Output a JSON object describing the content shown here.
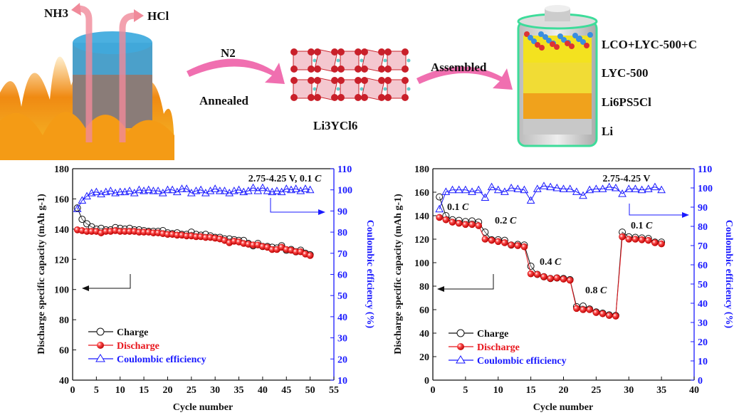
{
  "schematic": {
    "gas_1": "NH3",
    "gas_2": "HCl",
    "step_1_top": "N2",
    "step_1_bottom": "Annealed",
    "product": "Li3YCl6",
    "step_2": "Assembled",
    "layers": [
      "LCO+LYC-500+C",
      "LYC-500",
      "Li6PS5Cl",
      "Li"
    ],
    "colors": {
      "arrow": "#f06fb0",
      "flame": "#f7a21b",
      "crystal": "#c9202a",
      "layer_yellow": "#f3e21f",
      "layer_orange": "#f0a21c",
      "can_rim": "#3ddc9a"
    }
  },
  "chart_data": [
    {
      "type": "scatter-line",
      "xlabel": "Cycle number",
      "ylabel": "Discharge specific capacity (mAh g-1)",
      "y2label": "Coulombic efficiency (%)",
      "xlim": [
        0,
        55
      ],
      "ylim": [
        40,
        180
      ],
      "y2lim": [
        10,
        110
      ],
      "xticks": [
        0,
        5,
        10,
        15,
        20,
        25,
        30,
        35,
        40,
        45,
        50,
        55
      ],
      "yticks": [
        40,
        60,
        80,
        100,
        120,
        140,
        160,
        180
      ],
      "y2ticks": [
        10,
        20,
        30,
        40,
        50,
        60,
        70,
        80,
        90,
        100,
        110
      ],
      "annotations": [
        {
          "value": "2.75-4.25 V, 0.1",
          "unit": "C"
        }
      ],
      "legend": [
        "Charge",
        "Discharge",
        "Coulombic efficiency"
      ],
      "legend_position": "bottom-left",
      "colors": {
        "charge": "#111111",
        "discharge": "#e8141b",
        "ce": "#1a1aff"
      },
      "x": [
        1,
        2,
        3,
        4,
        5,
        6,
        7,
        8,
        9,
        10,
        11,
        12,
        13,
        14,
        15,
        16,
        17,
        18,
        19,
        20,
        21,
        22,
        23,
        24,
        25,
        26,
        27,
        28,
        29,
        30,
        31,
        32,
        33,
        34,
        35,
        36,
        37,
        38,
        39,
        40,
        41,
        42,
        43,
        44,
        45,
        46,
        47,
        48,
        49,
        50
      ],
      "series": [
        {
          "name": "Charge",
          "axis": "left",
          "values": [
            154,
            146.5,
            143.5,
            141.5,
            140,
            140.5,
            139.5,
            139.5,
            141,
            140.5,
            140,
            140.5,
            139.5,
            139.5,
            139,
            138.5,
            138.5,
            138.5,
            139,
            137.5,
            137,
            137.5,
            136.5,
            136.5,
            138,
            136.5,
            136,
            136.5,
            135.5,
            134.5,
            134.5,
            133.5,
            133.5,
            133,
            132.5,
            132.5,
            130.5,
            129,
            130.5,
            128.5,
            128.5,
            128,
            127.5,
            129,
            126,
            126.5,
            125,
            126,
            124,
            123
          ]
        },
        {
          "name": "Discharge",
          "axis": "left",
          "values": [
            139.5,
            139,
            138.5,
            138.5,
            138.5,
            137.5,
            138.5,
            138.5,
            139,
            138.5,
            138.5,
            138.5,
            138.5,
            138,
            138,
            138,
            137.5,
            137.5,
            137,
            136.5,
            136.5,
            136,
            136,
            135.5,
            135.5,
            135,
            135,
            134.5,
            134.5,
            134,
            133.5,
            132.5,
            131,
            132,
            131.5,
            130.5,
            130,
            129.5,
            129.5,
            128.5,
            128,
            126.5,
            126.5,
            128,
            126.5,
            126,
            125,
            125,
            123.5,
            122.5
          ]
        },
        {
          "name": "Coulombic efficiency",
          "axis": "right",
          "values": [
            91,
            95,
            97,
            98.5,
            99,
            98,
            99,
            99.5,
            98.5,
            99,
            99,
            99.5,
            98.5,
            100,
            99.5,
            100,
            99.5,
            99.5,
            98.5,
            100,
            100,
            99,
            100.5,
            100.5,
            98.5,
            99.5,
            100,
            98.5,
            99.5,
            100.5,
            99.5,
            99.5,
            98.5,
            99.5,
            100,
            99,
            99.5,
            101,
            99.5,
            101,
            99.5,
            99,
            99.5,
            99,
            100.5,
            100,
            100.5,
            99.5,
            100.5,
            100
          ]
        }
      ]
    },
    {
      "type": "scatter-line",
      "xlabel": "Cycle number",
      "ylabel": "Discharge specific capacity (mAh g-1)",
      "y2label": "Coulombic efficiency (%)",
      "xlim": [
        0,
        40
      ],
      "ylim": [
        0,
        180
      ],
      "y2lim": [
        0,
        110
      ],
      "xticks": [
        0,
        5,
        10,
        15,
        20,
        25,
        30,
        35,
        40
      ],
      "yticks": [
        0,
        20,
        40,
        60,
        80,
        100,
        120,
        140,
        160,
        180
      ],
      "y2ticks": [
        0,
        10,
        20,
        30,
        40,
        50,
        60,
        70,
        80,
        90,
        100,
        110
      ],
      "annotations": [
        {
          "value": "2.75-4.25 V",
          "unit": ""
        },
        {
          "value": "0.1",
          "unit": "C"
        },
        {
          "value": "0.2",
          "unit": "C"
        },
        {
          "value": "0.4",
          "unit": "C"
        },
        {
          "value": "0.8",
          "unit": "C"
        },
        {
          "value": "0.1",
          "unit": "C"
        }
      ],
      "legend": [
        "Charge",
        "Discharge",
        "Coulombic efficiency"
      ],
      "legend_position": "bottom-left",
      "colors": {
        "charge": "#111111",
        "discharge": "#e8141b",
        "ce": "#1a1aff"
      },
      "x": [
        1,
        2,
        3,
        4,
        5,
        6,
        7,
        8,
        9,
        10,
        11,
        12,
        13,
        14,
        15,
        16,
        17,
        18,
        19,
        20,
        21,
        22,
        23,
        24,
        25,
        26,
        27,
        28,
        29,
        30,
        31,
        32,
        33,
        34,
        35
      ],
      "series": [
        {
          "name": "Charge",
          "axis": "left",
          "values": [
            156,
            140,
            136.5,
            136,
            135,
            135.5,
            134.5,
            126,
            119.5,
            119.5,
            119,
            115,
            115.5,
            115,
            97,
            90,
            88,
            86.5,
            87,
            86.5,
            85.5,
            62.5,
            63,
            60.5,
            58,
            57,
            55.5,
            55,
            126,
            122,
            121.5,
            121,
            120.5,
            117.5,
            117.5
          ]
        },
        {
          "name": "Discharge",
          "axis": "left",
          "values": [
            138.5,
            136.5,
            134.5,
            133.5,
            132.5,
            132.5,
            131.5,
            120,
            119,
            118,
            117,
            115,
            114.5,
            113.5,
            90.5,
            90,
            88,
            86.5,
            87,
            86,
            85,
            61,
            60,
            60,
            57.5,
            56.5,
            55,
            54.5,
            122,
            120,
            120,
            119.5,
            119,
            117,
            116
          ]
        },
        {
          "name": "Coulombic efficiency",
          "axis": "right",
          "values": [
            89,
            98,
            99,
            99,
            99,
            98,
            99,
            95,
            100.5,
            99,
            98,
            100,
            99.5,
            99,
            93.5,
            99.5,
            101,
            100.5,
            100,
            99.5,
            99.5,
            98,
            96,
            99,
            99.5,
            99.5,
            100.5,
            100,
            97,
            99.5,
            99.5,
            99,
            99.5,
            100.5,
            99
          ]
        }
      ]
    }
  ]
}
